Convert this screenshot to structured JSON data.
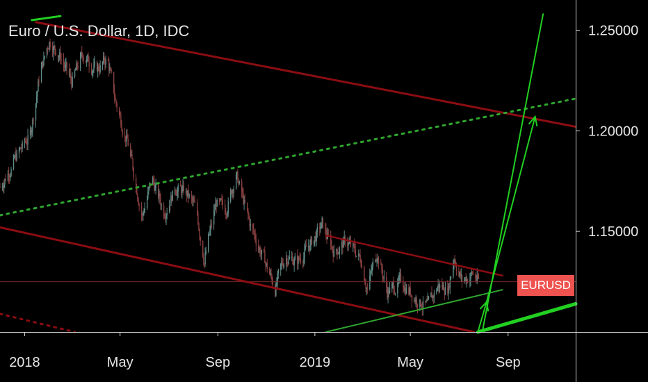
{
  "title": "Euro / U.S. Dollar, 1D, IDC",
  "symbol_badge": "EURUSD",
  "colors": {
    "background": "#000000",
    "candle_up": "#5f8a86",
    "candle_down": "#8a3f3f",
    "channel": "#8b0d12",
    "projection": "#22d022",
    "midline": "#2fa62f",
    "badge": "#ef5350",
    "axis_text": "#e6e6e6"
  },
  "chart_data": {
    "type": "candlestick",
    "title": "Euro / U.S. Dollar, 1D, IDC",
    "xlabel": "",
    "ylabel": "",
    "x_range": [
      "2017-12-01",
      "2019-11-25"
    ],
    "y_range": [
      1.1,
      1.265
    ],
    "y_ticks": [
      1.25,
      1.2,
      1.15
    ],
    "y_tick_labels": [
      "1.25000",
      "1.20000",
      "1.15000"
    ],
    "x_ticks": [
      "2018-01-01",
      "2018-05-01",
      "2018-09-01",
      "2019-01-01",
      "2019-05-01",
      "2019-09-01"
    ],
    "x_tick_labels": [
      "2018",
      "May",
      "Sep",
      "2019",
      "May",
      "Sep"
    ],
    "last_price": 1.125,
    "price_path": [
      [
        "2017-12-01",
        1.172
      ],
      [
        "2017-12-20",
        1.186
      ],
      [
        "2018-01-08",
        1.198
      ],
      [
        "2018-01-20",
        1.228
      ],
      [
        "2018-02-01",
        1.245
      ],
      [
        "2018-02-15",
        1.237
      ],
      [
        "2018-03-01",
        1.224
      ],
      [
        "2018-03-15",
        1.238
      ],
      [
        "2018-04-01",
        1.23
      ],
      [
        "2018-04-15",
        1.236
      ],
      [
        "2018-04-25",
        1.215
      ],
      [
        "2018-05-10",
        1.195
      ],
      [
        "2018-05-29",
        1.158
      ],
      [
        "2018-06-10",
        1.176
      ],
      [
        "2018-06-25",
        1.16
      ],
      [
        "2018-07-10",
        1.172
      ],
      [
        "2018-07-25",
        1.168
      ],
      [
        "2018-08-05",
        1.16
      ],
      [
        "2018-08-15",
        1.136
      ],
      [
        "2018-08-30",
        1.164
      ],
      [
        "2018-09-10",
        1.16
      ],
      [
        "2018-09-24",
        1.178
      ],
      [
        "2018-10-10",
        1.155
      ],
      [
        "2018-10-31",
        1.134
      ],
      [
        "2018-11-12",
        1.122
      ],
      [
        "2018-11-25",
        1.138
      ],
      [
        "2018-12-10",
        1.135
      ],
      [
        "2018-12-31",
        1.146
      ],
      [
        "2019-01-10",
        1.153
      ],
      [
        "2019-01-25",
        1.14
      ],
      [
        "2019-02-10",
        1.145
      ],
      [
        "2019-02-28",
        1.136
      ],
      [
        "2019-03-08",
        1.122
      ],
      [
        "2019-03-20",
        1.14
      ],
      [
        "2019-04-02",
        1.12
      ],
      [
        "2019-04-20",
        1.125
      ],
      [
        "2019-05-05",
        1.118
      ],
      [
        "2019-05-23",
        1.112
      ],
      [
        "2019-06-05",
        1.123
      ],
      [
        "2019-06-18",
        1.122
      ],
      [
        "2019-06-25",
        1.138
      ],
      [
        "2019-07-05",
        1.125
      ],
      [
        "2019-07-18",
        1.129
      ],
      [
        "2019-07-26",
        1.125
      ]
    ],
    "annotations": {
      "channel_upper": [
        [
          "2018-01-15",
          1.254
        ],
        [
          "2019-11-25",
          1.202
        ]
      ],
      "channel_lower": [
        [
          "2017-12-01",
          1.152
        ],
        [
          "2019-07-20",
          1.1
        ]
      ],
      "short_channel_upper": [
        [
          "2019-01-15",
          1.148
        ],
        [
          "2019-08-25",
          1.128
        ]
      ],
      "short_channel_lower": [
        [
          "2019-01-15",
          1.1
        ],
        [
          "2019-08-25",
          1.121
        ]
      ],
      "dotted_midline": [
        [
          "2017-12-01",
          1.158
        ],
        [
          "2019-11-25",
          1.216
        ]
      ],
      "dotted_lower": [
        [
          "2017-12-01",
          1.109
        ],
        [
          "2018-03-05",
          1.1
        ]
      ],
      "top_marker": [
        [
          "2018-01-10",
          1.255
        ],
        [
          "2018-02-15",
          1.257
        ]
      ],
      "projection_up": [
        [
          "2019-07-31",
          1.101
        ],
        [
          "2019-10-15",
          1.258
        ]
      ],
      "projection_mid": [
        [
          "2019-07-25",
          1.1
        ],
        [
          "2019-08-05",
          1.115
        ],
        [
          "2019-10-05",
          1.207
        ]
      ],
      "base_line": [
        [
          "2019-07-25",
          1.1
        ],
        [
          "2019-11-25",
          1.114
        ]
      ],
      "price_line": 1.125
    }
  }
}
